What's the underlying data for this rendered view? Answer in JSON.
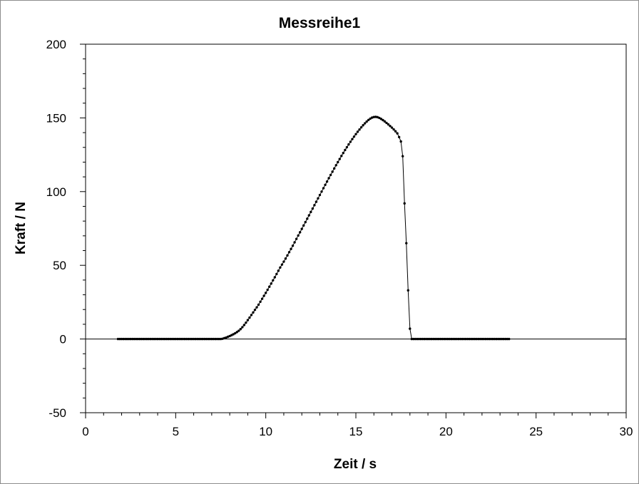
{
  "chart_data": {
    "type": "line",
    "title": "Messreihe1",
    "xlabel": "Zeit / s",
    "ylabel": "Kraft / N",
    "xlim": [
      0,
      30
    ],
    "ylim": [
      -50,
      200
    ],
    "x_ticks": [
      "0",
      "5",
      "10",
      "15",
      "20",
      "25",
      "30"
    ],
    "y_ticks": [
      "-50",
      "0",
      "50",
      "100",
      "150",
      "200"
    ],
    "grid": false,
    "zero_line": true,
    "series": [
      {
        "color": "#000000",
        "marker": "dot",
        "points": [
          [
            1.8,
            0.0
          ],
          [
            1.9,
            0.0
          ],
          [
            2.0,
            0.0
          ],
          [
            2.1,
            0.0
          ],
          [
            2.2,
            0.0
          ],
          [
            2.3,
            0.0
          ],
          [
            2.4,
            0.0
          ],
          [
            2.5,
            0.0
          ],
          [
            2.6,
            0.0
          ],
          [
            2.7,
            0.0
          ],
          [
            2.8,
            0.0
          ],
          [
            2.9,
            0.0
          ],
          [
            3.0,
            0.0
          ],
          [
            3.1,
            0.0
          ],
          [
            3.2,
            0.0
          ],
          [
            3.3,
            0.0
          ],
          [
            3.4,
            0.0
          ],
          [
            3.5,
            0.0
          ],
          [
            3.6,
            0.0
          ],
          [
            3.7,
            0.0
          ],
          [
            3.8,
            0.0
          ],
          [
            3.9,
            0.0
          ],
          [
            4.0,
            0.0
          ],
          [
            4.1,
            0.0
          ],
          [
            4.2,
            0.0
          ],
          [
            4.3,
            0.0
          ],
          [
            4.4,
            0.0
          ],
          [
            4.5,
            0.0
          ],
          [
            4.6,
            0.0
          ],
          [
            4.7,
            0.0
          ],
          [
            4.8,
            0.0
          ],
          [
            4.9,
            0.0
          ],
          [
            5.0,
            0.0
          ],
          [
            5.1,
            0.0
          ],
          [
            5.2,
            0.0
          ],
          [
            5.3,
            0.0
          ],
          [
            5.4,
            0.0
          ],
          [
            5.5,
            0.0
          ],
          [
            5.6,
            0.0
          ],
          [
            5.7,
            0.0
          ],
          [
            5.8,
            0.0
          ],
          [
            5.9,
            0.0
          ],
          [
            6.0,
            0.0
          ],
          [
            6.1,
            0.0
          ],
          [
            6.2,
            0.0
          ],
          [
            6.3,
            0.0
          ],
          [
            6.4,
            0.0
          ],
          [
            6.5,
            0.0
          ],
          [
            6.6,
            0.0
          ],
          [
            6.7,
            0.0
          ],
          [
            6.8,
            0.0
          ],
          [
            6.9,
            0.0
          ],
          [
            7.0,
            0.0
          ],
          [
            7.1,
            0.0
          ],
          [
            7.2,
            0.0
          ],
          [
            7.3,
            0.0
          ],
          [
            7.4,
            0.0
          ],
          [
            7.5,
            0.0
          ],
          [
            7.6,
            0.2
          ],
          [
            7.7,
            0.6
          ],
          [
            7.8,
            1.0
          ],
          [
            7.9,
            1.5
          ],
          [
            8.0,
            2.0
          ],
          [
            8.1,
            2.6
          ],
          [
            8.2,
            3.2
          ],
          [
            8.3,
            3.9
          ],
          [
            8.4,
            4.7
          ],
          [
            8.5,
            5.6
          ],
          [
            8.6,
            6.7
          ],
          [
            8.7,
            8.0
          ],
          [
            8.8,
            9.5
          ],
          [
            8.9,
            11.1
          ],
          [
            9.0,
            12.8
          ],
          [
            9.1,
            14.5
          ],
          [
            9.2,
            16.3
          ],
          [
            9.3,
            18.0
          ],
          [
            9.4,
            19.8
          ],
          [
            9.5,
            21.5
          ],
          [
            9.6,
            23.3
          ],
          [
            9.7,
            25.3
          ],
          [
            9.8,
            27.3
          ],
          [
            9.9,
            29.3
          ],
          [
            10.0,
            31.3
          ],
          [
            10.1,
            33.4
          ],
          [
            10.2,
            35.5
          ],
          [
            10.3,
            37.6
          ],
          [
            10.4,
            39.8
          ],
          [
            10.5,
            41.9
          ],
          [
            10.6,
            44.1
          ],
          [
            10.7,
            46.3
          ],
          [
            10.8,
            48.5
          ],
          [
            10.9,
            50.5
          ],
          [
            11.0,
            52.5
          ],
          [
            11.1,
            54.6
          ],
          [
            11.2,
            56.7
          ],
          [
            11.3,
            58.9
          ],
          [
            11.4,
            61.1
          ],
          [
            11.5,
            63.3
          ],
          [
            11.6,
            65.6
          ],
          [
            11.7,
            67.9
          ],
          [
            11.8,
            70.2
          ],
          [
            11.9,
            72.4
          ],
          [
            12.0,
            74.7
          ],
          [
            12.1,
            77.0
          ],
          [
            12.2,
            79.3
          ],
          [
            12.3,
            81.6
          ],
          [
            12.4,
            83.9
          ],
          [
            12.5,
            86.2
          ],
          [
            12.6,
            88.5
          ],
          [
            12.7,
            90.8
          ],
          [
            12.8,
            93.1
          ],
          [
            12.9,
            95.4
          ],
          [
            13.0,
            97.7
          ],
          [
            13.1,
            100.0
          ],
          [
            13.2,
            102.3
          ],
          [
            13.3,
            104.6
          ],
          [
            13.4,
            106.8
          ],
          [
            13.5,
            109.1
          ],
          [
            13.6,
            111.3
          ],
          [
            13.7,
            113.5
          ],
          [
            13.8,
            115.7
          ],
          [
            13.9,
            117.9
          ],
          [
            14.0,
            120.0
          ],
          [
            14.1,
            122.1
          ],
          [
            14.2,
            124.2
          ],
          [
            14.3,
            126.2
          ],
          [
            14.4,
            128.2
          ],
          [
            14.5,
            130.1
          ],
          [
            14.6,
            132.0
          ],
          [
            14.7,
            133.8
          ],
          [
            14.8,
            135.6
          ],
          [
            14.9,
            137.3
          ],
          [
            15.0,
            139.0
          ],
          [
            15.1,
            140.6
          ],
          [
            15.2,
            142.1
          ],
          [
            15.3,
            143.6
          ],
          [
            15.4,
            145.0
          ],
          [
            15.5,
            146.3
          ],
          [
            15.6,
            147.5
          ],
          [
            15.7,
            148.6
          ],
          [
            15.8,
            149.5
          ],
          [
            15.9,
            150.2
          ],
          [
            16.0,
            150.6
          ],
          [
            16.1,
            150.7
          ],
          [
            16.2,
            150.5
          ],
          [
            16.3,
            150.0
          ],
          [
            16.4,
            149.3
          ],
          [
            16.5,
            148.5
          ],
          [
            16.6,
            147.6
          ],
          [
            16.7,
            146.6
          ],
          [
            16.8,
            145.6
          ],
          [
            16.9,
            144.5
          ],
          [
            17.0,
            143.4
          ],
          [
            17.1,
            142.2
          ],
          [
            17.2,
            140.9
          ],
          [
            17.3,
            139.5
          ],
          [
            17.4,
            137.0
          ],
          [
            17.5,
            134.0
          ],
          [
            17.6,
            124.0
          ],
          [
            17.7,
            92.0
          ],
          [
            17.8,
            65.0
          ],
          [
            17.9,
            33.0
          ],
          [
            18.0,
            7.0
          ],
          [
            18.1,
            0.0
          ],
          [
            18.2,
            0.0
          ],
          [
            18.3,
            0.0
          ],
          [
            18.4,
            0.0
          ],
          [
            18.5,
            0.0
          ],
          [
            18.6,
            0.0
          ],
          [
            18.7,
            0.0
          ],
          [
            18.8,
            0.0
          ],
          [
            18.9,
            0.0
          ],
          [
            19.0,
            0.0
          ],
          [
            19.1,
            0.0
          ],
          [
            19.2,
            0.0
          ],
          [
            19.3,
            0.0
          ],
          [
            19.4,
            0.0
          ],
          [
            19.5,
            0.0
          ],
          [
            19.6,
            0.0
          ],
          [
            19.7,
            0.0
          ],
          [
            19.8,
            0.0
          ],
          [
            19.9,
            0.0
          ],
          [
            20.0,
            0.0
          ],
          [
            20.1,
            0.0
          ],
          [
            20.2,
            0.0
          ],
          [
            20.3,
            0.0
          ],
          [
            20.4,
            0.0
          ],
          [
            20.5,
            0.0
          ],
          [
            20.6,
            0.0
          ],
          [
            20.7,
            0.0
          ],
          [
            20.8,
            0.0
          ],
          [
            20.9,
            0.0
          ],
          [
            21.0,
            0.0
          ],
          [
            21.1,
            0.0
          ],
          [
            21.2,
            0.0
          ],
          [
            21.3,
            0.0
          ],
          [
            21.4,
            0.0
          ],
          [
            21.5,
            0.0
          ],
          [
            21.6,
            0.0
          ],
          [
            21.7,
            0.0
          ],
          [
            21.8,
            0.0
          ],
          [
            21.9,
            0.0
          ],
          [
            22.0,
            0.0
          ],
          [
            22.1,
            0.0
          ],
          [
            22.2,
            0.0
          ],
          [
            22.3,
            0.0
          ],
          [
            22.4,
            0.0
          ],
          [
            22.5,
            0.0
          ],
          [
            22.6,
            0.0
          ],
          [
            22.7,
            0.0
          ],
          [
            22.8,
            0.0
          ],
          [
            22.9,
            0.0
          ],
          [
            23.0,
            0.0
          ],
          [
            23.1,
            0.0
          ],
          [
            23.2,
            0.0
          ],
          [
            23.3,
            0.0
          ],
          [
            23.4,
            0.0
          ],
          [
            23.5,
            0.0
          ]
        ]
      }
    ]
  }
}
